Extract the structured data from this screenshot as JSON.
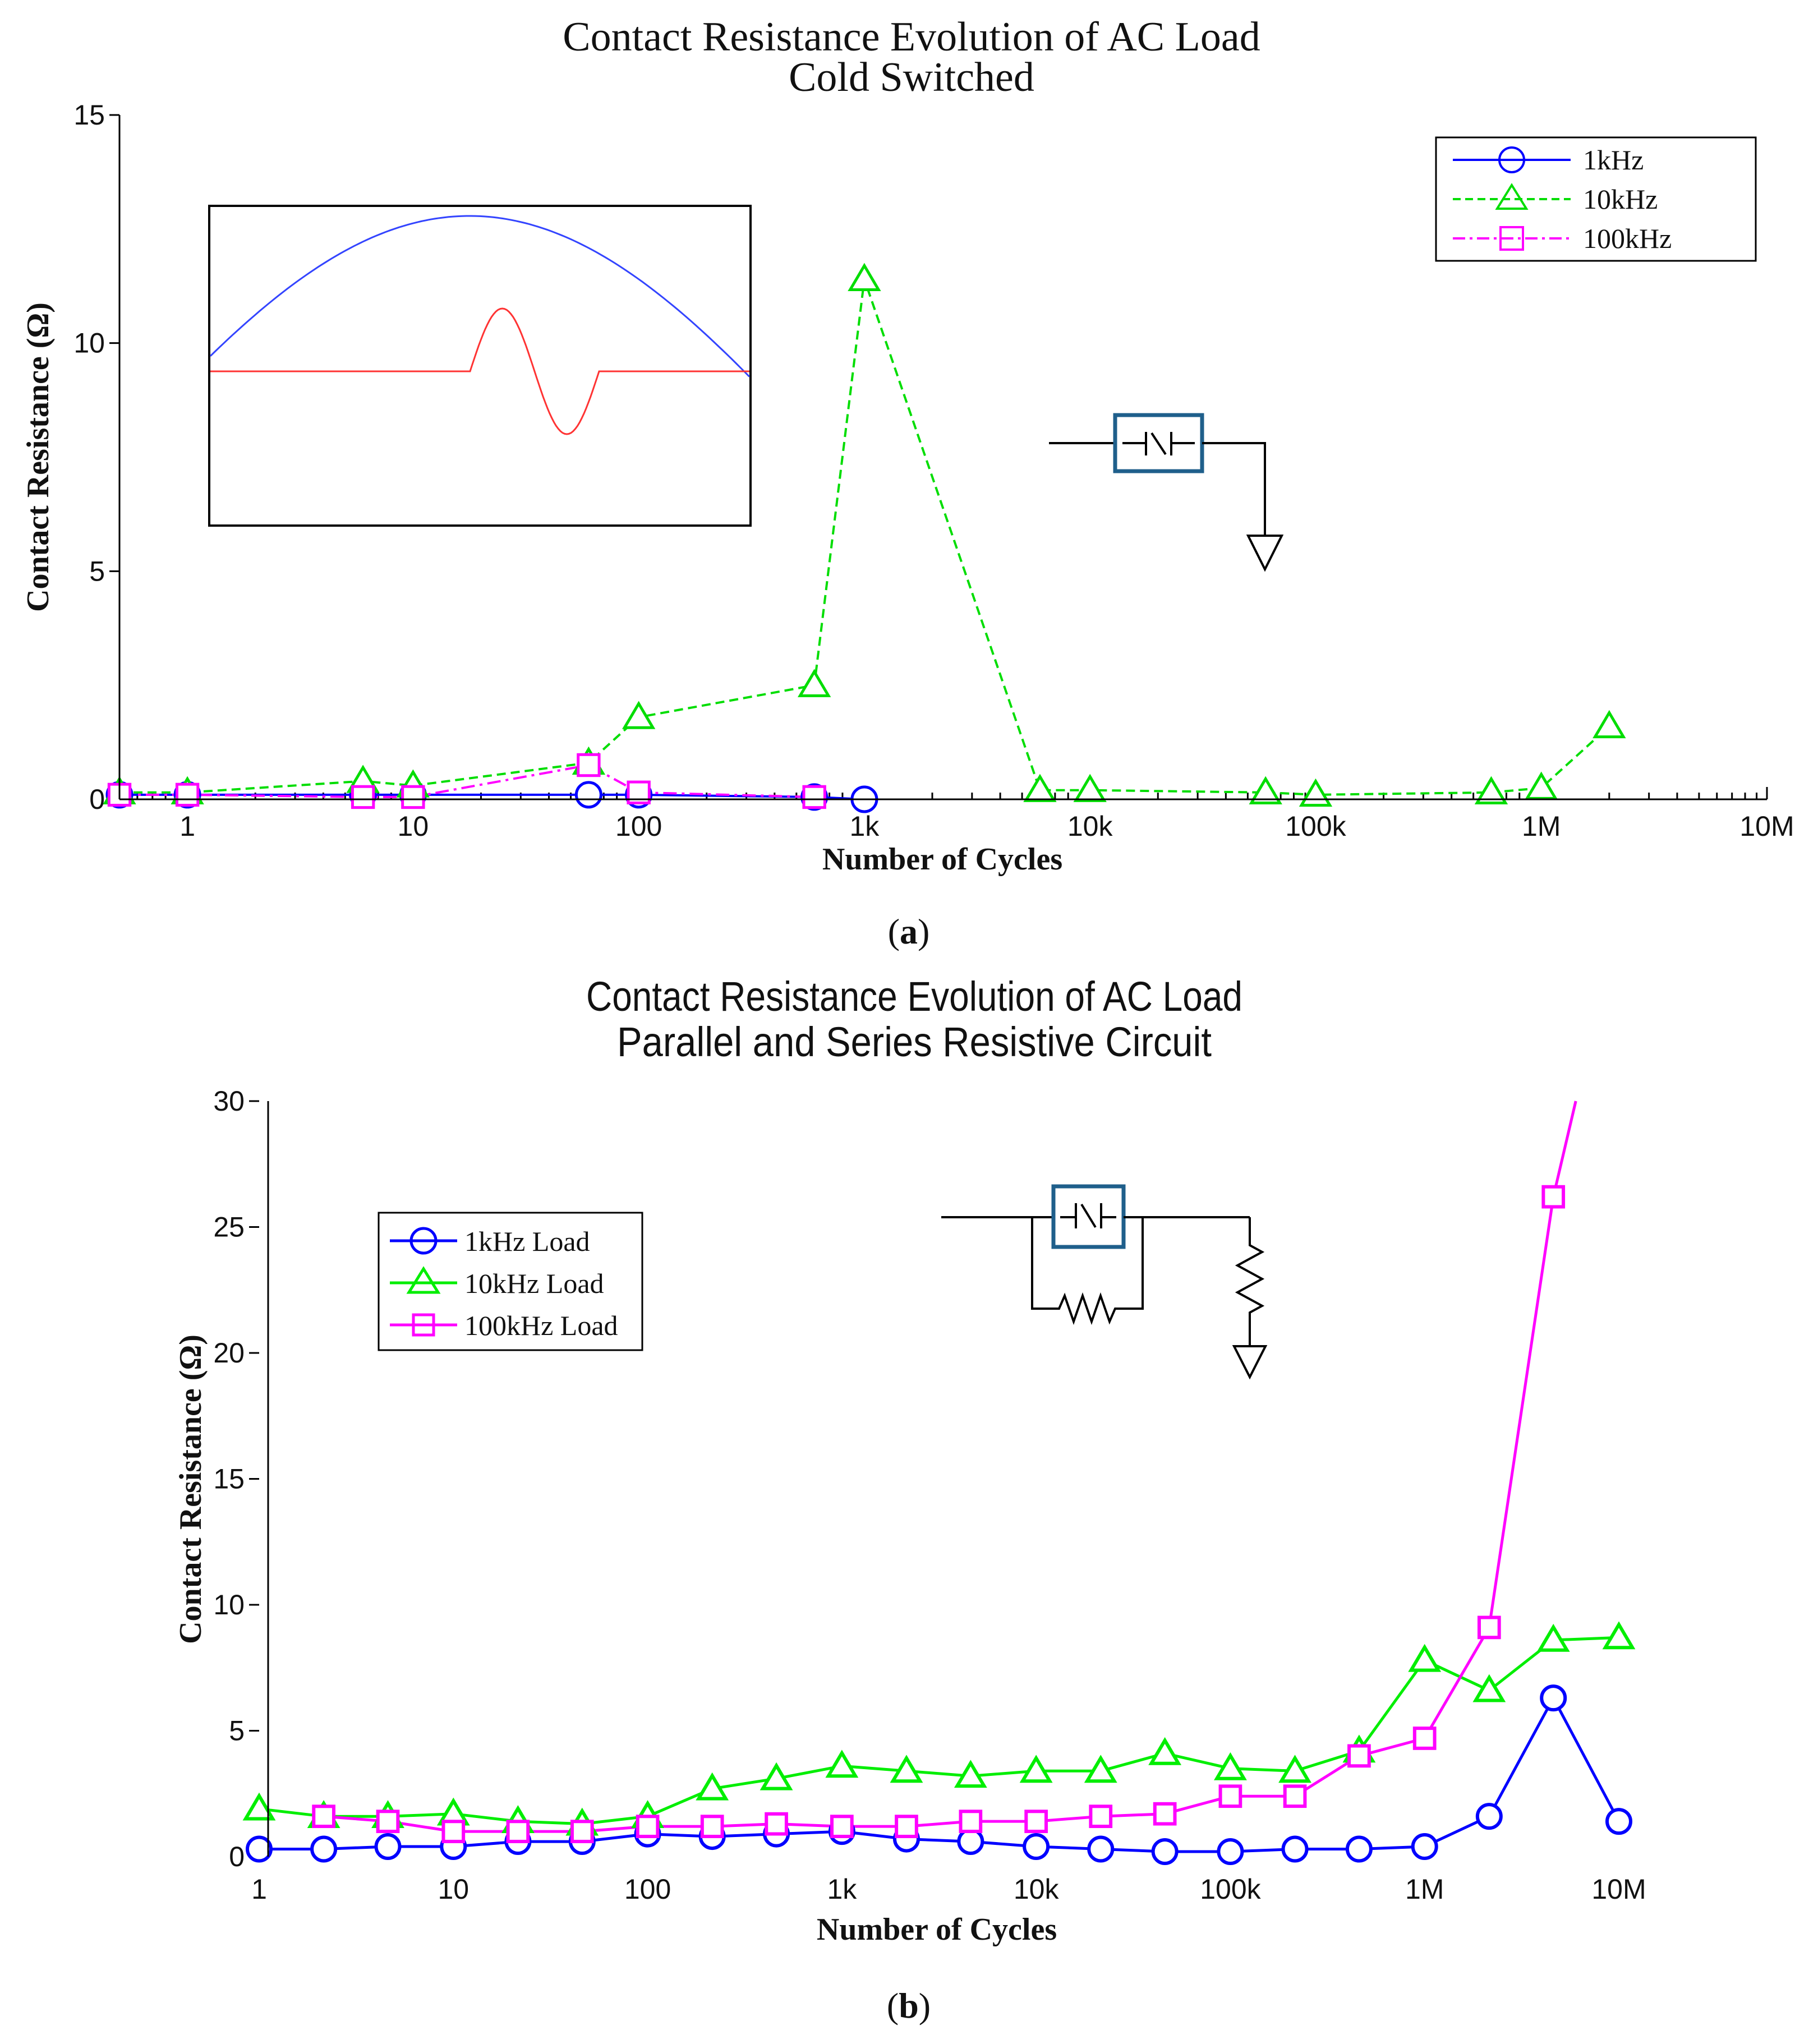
{
  "figure": {
    "caption_a": "a",
    "caption_b": "b"
  },
  "chart_data": [
    {
      "type": "line",
      "title": "Contact Resistance Evolution of AC Load",
      "subtitle": "Cold Switched",
      "xlabel": "Number of Cycles",
      "ylabel": "Contact Resistance (Ω)",
      "xscale": "log",
      "xlim": [
        0.5,
        10000000
      ],
      "ylim": [
        0,
        15
      ],
      "xticks": [
        1,
        10,
        100,
        1000,
        10000,
        100000,
        1000000,
        10000000
      ],
      "xtick_labels": [
        "1",
        "10",
        "100",
        "1k",
        "10k",
        "100k",
        "1M",
        "10M"
      ],
      "yticks": [
        0,
        5,
        10,
        15
      ],
      "ytick_labels": [
        "0",
        "5",
        "10",
        "15"
      ],
      "legend_position": "top-right",
      "inset": "waveform: sine with transient pulse",
      "circuit": "switch to ground",
      "series": [
        {
          "name": "1kHz",
          "color": "#0000ff",
          "marker": "circle",
          "dash": "solid",
          "x": [
            0.5,
            1,
            6,
            10,
            60,
            100,
            600,
            1000
          ],
          "y": [
            0.1,
            0.1,
            0.1,
            0.1,
            0.1,
            0.1,
            0.05,
            0.0
          ]
        },
        {
          "name": "10kHz",
          "color": "#00dd00",
          "marker": "triangle",
          "dash": "dashed",
          "x": [
            0.5,
            1,
            6,
            10,
            60,
            100,
            600,
            1000,
            6000,
            10000,
            60000,
            100000,
            600000,
            1000000,
            2000000
          ],
          "y": [
            0.15,
            0.15,
            0.4,
            0.3,
            0.8,
            1.8,
            2.5,
            11.4,
            0.2,
            0.2,
            0.15,
            0.1,
            0.15,
            0.25,
            1.6
          ]
        },
        {
          "name": "100kHz",
          "color": "#ff00ff",
          "marker": "square",
          "dash": "dashdot",
          "x": [
            0.5,
            1,
            6,
            10,
            60,
            100,
            600
          ],
          "y": [
            0.1,
            0.1,
            0.05,
            0.05,
            0.75,
            0.15,
            0.05
          ]
        }
      ]
    },
    {
      "type": "line",
      "title": "Contact Resistance Evolution of AC Load",
      "subtitle": "Parallel and Series Resistive Circuit",
      "xlabel": "Number of Cycles",
      "ylabel": "Contact Resistance (Ω)",
      "xscale": "log",
      "xlim": [
        1,
        10000000
      ],
      "ylim": [
        0,
        30
      ],
      "xticks": [
        1,
        10,
        100,
        1000,
        10000,
        100000,
        1000000,
        10000000
      ],
      "xtick_labels": [
        "1",
        "10",
        "100",
        "1k",
        "10k",
        "100k",
        "1M",
        "10M"
      ],
      "yticks": [
        0,
        5,
        10,
        15,
        20,
        25,
        30
      ],
      "ytick_labels": [
        "0",
        "5",
        "10",
        "15",
        "20",
        "25",
        "30"
      ],
      "legend_position": "top-left",
      "circuit": "switch with parallel resistor, series resistor to ground",
      "series": [
        {
          "name": "1kHz Load",
          "color": "#0000ff",
          "marker": "circle",
          "dash": "solid",
          "x": [
            1,
            2.15,
            4.6,
            10,
            21.5,
            46,
            100,
            215,
            460,
            1000,
            2150,
            4600,
            10000,
            21500,
            46000,
            100000,
            215000,
            460000,
            1000000,
            2150000,
            4600000,
            10000000
          ],
          "y": [
            0.3,
            0.3,
            0.4,
            0.4,
            0.6,
            0.6,
            0.9,
            0.8,
            0.9,
            1.0,
            0.7,
            0.6,
            0.4,
            0.3,
            0.2,
            0.2,
            0.3,
            0.3,
            0.4,
            1.6,
            6.3,
            1.4
          ]
        },
        {
          "name": "10kHz Load",
          "color": "#00ee00",
          "marker": "triangle",
          "dash": "solid",
          "x": [
            1,
            2.15,
            4.6,
            10,
            21.5,
            46,
            100,
            215,
            460,
            1000,
            2150,
            4600,
            10000,
            21500,
            46000,
            100000,
            215000,
            460000,
            1000000,
            2150000,
            4600000,
            10000000
          ],
          "y": [
            1.9,
            1.6,
            1.6,
            1.7,
            1.4,
            1.3,
            1.6,
            2.7,
            3.1,
            3.6,
            3.4,
            3.2,
            3.4,
            3.4,
            4.1,
            3.5,
            3.4,
            4.2,
            7.8,
            6.6,
            8.6,
            8.7
          ]
        },
        {
          "name": "100kHz Load",
          "color": "#ff00ff",
          "marker": "square",
          "dash": "solid",
          "x": [
            2.15,
            4.6,
            10,
            21.5,
            46,
            100,
            215,
            460,
            1000,
            2150,
            4600,
            10000,
            21500,
            46000,
            100000,
            215000,
            460000,
            1000000,
            2150000,
            4600000,
            6000000
          ],
          "y": [
            1.6,
            1.4,
            1.0,
            1.0,
            1.0,
            1.2,
            1.2,
            1.3,
            1.2,
            1.2,
            1.4,
            1.4,
            1.6,
            1.7,
            2.4,
            2.4,
            4.0,
            4.7,
            9.1,
            26.2,
            30.0
          ],
          "marker_count": 20
        }
      ]
    }
  ]
}
